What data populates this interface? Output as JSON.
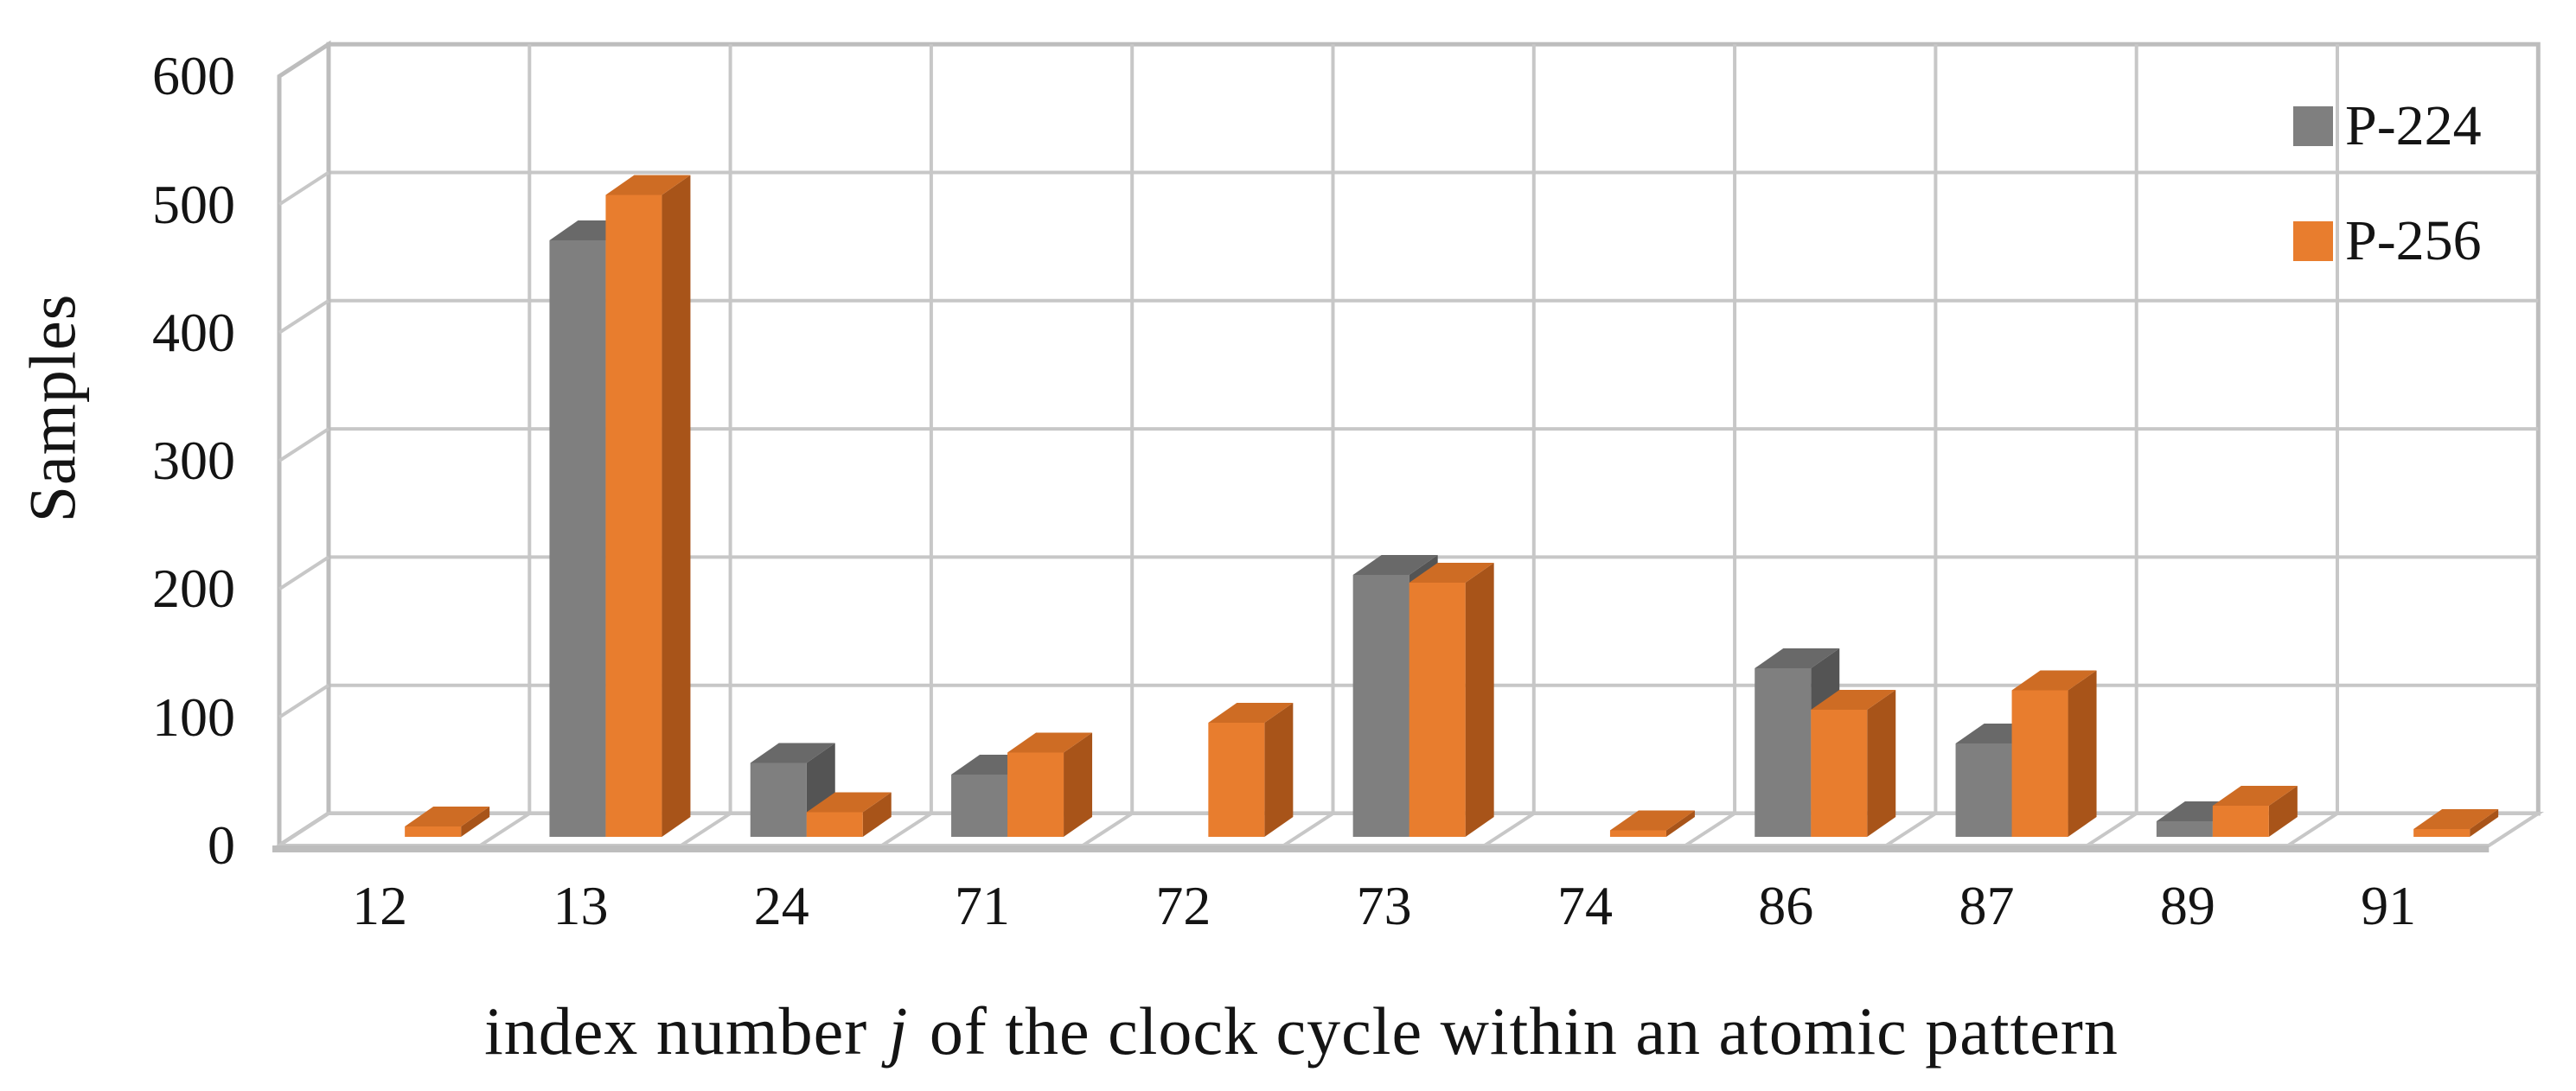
{
  "figure": {
    "kind": "3d-clustered-column-chart-figure",
    "background": "#FFFFFF"
  },
  "chart_data": {
    "type": "bar",
    "style": "3d-clustered-column",
    "title": "",
    "ylabel": "Samples",
    "xlabel": "index number j of the clock cycle within an atomic pattern",
    "xlabel_parts": {
      "pre": "index number",
      "italic": "j",
      "post": "of the clock cycle within an atomic pattern"
    },
    "categories": [
      "12",
      "13",
      "24",
      "71",
      "72",
      "73",
      "74",
      "86",
      "87",
      "89",
      "91"
    ],
    "series": [
      {
        "name": "P-224",
        "values": [
          0,
          460,
          57,
          48,
          0,
          202,
          0,
          130,
          72,
          12,
          0
        ],
        "color": {
          "front": "#7F7F7F",
          "top": "#696969",
          "side": "#545454"
        }
      },
      {
        "name": "P-256",
        "values": [
          8,
          495,
          19,
          65,
          88,
          196,
          5,
          98,
          113,
          24,
          6
        ],
        "color": {
          "front": "#E87D2E",
          "top": "#CE6C24",
          "side": "#A85419"
        }
      }
    ],
    "ylim": [
      0,
      600
    ],
    "yticks": [
      0,
      100,
      200,
      300,
      400,
      500,
      600
    ],
    "grid": true,
    "legend_position": "top-right",
    "gridline_color": "#C7C7C7",
    "wall_border_color": "#BDBDBD",
    "text_color": "#141414",
    "background": "#FFFFFF"
  },
  "legend": {
    "items": [
      {
        "label": "P-224",
        "color": "#7F7F7F"
      },
      {
        "label": "P-256",
        "color": "#E87D2E"
      }
    ]
  }
}
